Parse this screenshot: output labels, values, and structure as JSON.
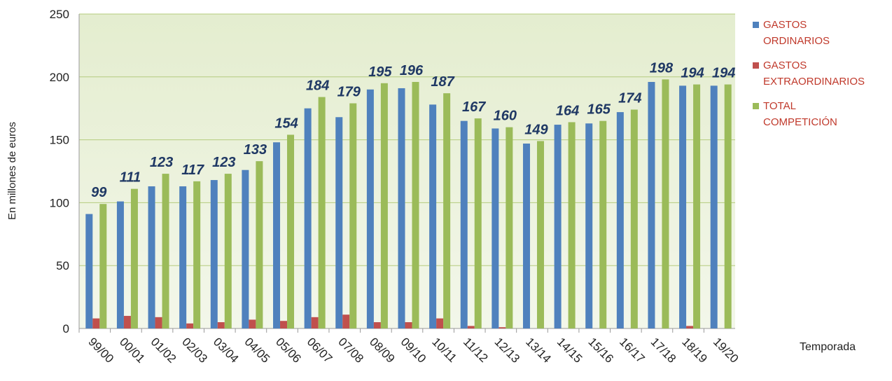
{
  "chart_data": {
    "type": "bar",
    "y_label": "En millones de euros",
    "x_label": "Temporada",
    "categories": [
      "99/00",
      "00/01",
      "01/02",
      "02/03",
      "03/04",
      "04/05",
      "05/06",
      "06/07",
      "07/08",
      "08/09",
      "09/10",
      "10/11",
      "11/12",
      "12/13",
      "13/14",
      "14/15",
      "15/16",
      "16/17",
      "17/18",
      "18/19",
      "19/20"
    ],
    "series": [
      {
        "name": "GASTOS ORDINARIOS",
        "color": "#4f81bd",
        "values": [
          91,
          101,
          113,
          113,
          118,
          126,
          148,
          175,
          168,
          190,
          191,
          178,
          165,
          159,
          147,
          162,
          163,
          172,
          196,
          193,
          193
        ]
      },
      {
        "name": "GASTOS EXTRAORDINARIOS",
        "color": "#c0504d",
        "values": [
          8,
          10,
          9,
          4,
          5,
          7,
          6,
          9,
          11,
          5,
          5,
          8,
          2,
          1,
          0,
          0,
          0,
          0,
          0,
          2,
          0
        ]
      },
      {
        "name": "TOTAL COMPETICIÓN",
        "color": "#9bbb59",
        "show_labels": true,
        "values": [
          99,
          111,
          123,
          117,
          123,
          133,
          154,
          184,
          179,
          195,
          196,
          187,
          167,
          160,
          149,
          164,
          165,
          174,
          198,
          194,
          194
        ]
      }
    ],
    "ylim": [
      0,
      250
    ],
    "yticks": [
      0,
      50,
      100,
      150,
      200,
      250
    ],
    "grid": true,
    "legend": "right"
  }
}
